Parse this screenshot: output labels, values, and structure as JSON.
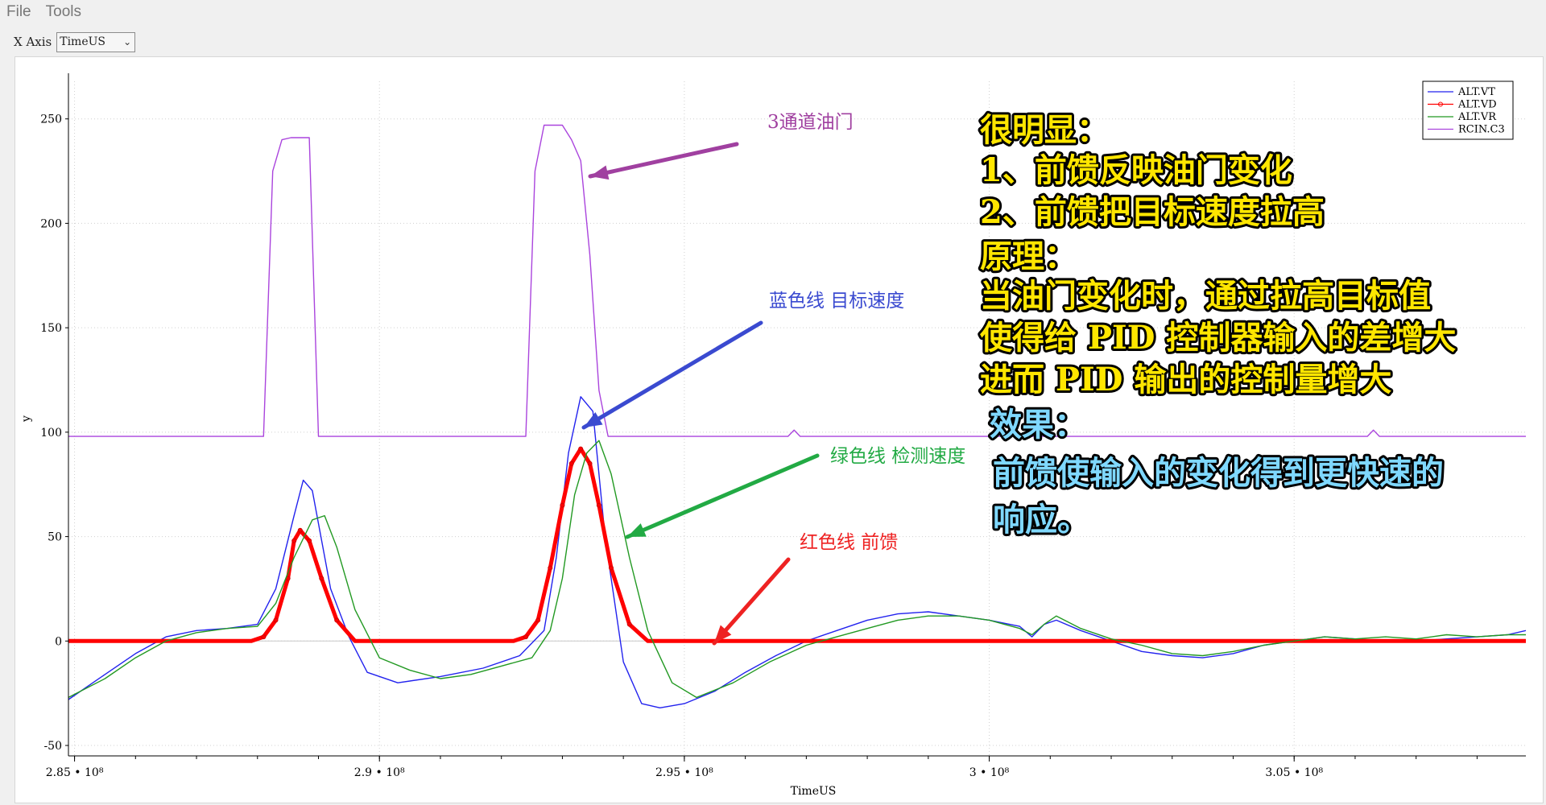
{
  "menu": {
    "items": [
      "File",
      "Tools"
    ]
  },
  "toolbar": {
    "x_axis_label": "X Axis",
    "x_axis_value": "TimeUS"
  },
  "colors": {
    "vt": "#2222ee",
    "vd": "#ff0000",
    "vr": "#229922",
    "rcin": "#aa44dd",
    "note_yellow": "#ffe600",
    "note_cyan": "#7fd8ff",
    "label_purple": "#a040a0",
    "label_blue": "#3a4ad0",
    "label_green": "#22aa44",
    "label_red": "#ee2222"
  },
  "annotations": {
    "label_rcin": "3通道油门",
    "label_vt": "蓝色线 目标速度",
    "label_vr": "绿色线 检测速度",
    "label_vd": "红色线 前馈",
    "note_yellow": [
      "很明显：",
      "1、前馈反映油门变化",
      "2、前馈把目标速度拉高",
      "原理：",
      "当油门变化时，通过拉高目标值",
      "使得给 PID 控制器输入的差增大",
      "进而 PID 输出的控制量增大"
    ],
    "note_cyan": [
      "效果：",
      "前馈使输入的变化得到更快速的",
      "响应。"
    ]
  },
  "chart_data": {
    "type": "line",
    "xlabel": "TimeUS",
    "ylabel": "y",
    "xlim": [
      284900000,
      308800000
    ],
    "ylim": [
      -55,
      268
    ],
    "x_ticks": [
      285000000,
      290000000,
      295000000,
      300000000,
      305000000
    ],
    "x_tick_labels": [
      "2.85",
      "2.9",
      "2.95",
      "3",
      "3.05"
    ],
    "x_tick_suffix": "• 10⁸",
    "y_ticks": [
      -50,
      0,
      50,
      100,
      150,
      200,
      250
    ],
    "y_tick_labels": [
      "-50",
      "0",
      "50",
      "100",
      "150",
      "200",
      "250"
    ],
    "grid": true,
    "legend_position": "top-right",
    "series": [
      {
        "name": "ALT.VT",
        "color_key": "vt",
        "x": [
          284900000,
          285500000,
          286000000,
          286500000,
          287000000,
          287500000,
          288000000,
          288300000,
          288600000,
          288750000,
          288900000,
          289200000,
          289500000,
          289800000,
          290300000,
          291000000,
          291700000,
          292300000,
          292700000,
          292900000,
          293100000,
          293300000,
          293500000,
          293700000,
          294000000,
          294300000,
          294600000,
          295000000,
          295500000,
          296000000,
          296500000,
          297000000,
          297500000,
          298000000,
          298500000,
          299000000,
          299500000,
          300000000,
          300500000,
          300700000,
          300900000,
          301100000,
          301500000,
          302000000,
          302500000,
          303000000,
          303500000,
          304000000,
          304500000,
          305000000,
          305500000,
          306000000,
          306500000,
          307000000,
          307500000,
          308000000,
          308500000,
          308800000
        ],
        "y": [
          -28,
          -16,
          -6,
          2,
          5,
          6,
          8,
          25,
          60,
          77,
          72,
          25,
          2,
          -15,
          -20,
          -17,
          -13,
          -7,
          5,
          40,
          90,
          117,
          110,
          50,
          -10,
          -30,
          -32,
          -30,
          -24,
          -15,
          -7,
          0,
          5,
          10,
          13,
          14,
          12,
          10,
          7,
          2,
          8,
          10,
          5,
          0,
          -5,
          -7,
          -8,
          -6,
          -2,
          0,
          2,
          1,
          0,
          0,
          1,
          2,
          3,
          5
        ]
      },
      {
        "name": "ALT.VD",
        "color_key": "vd",
        "x": [
          284900000,
          287900000,
          288100000,
          288300000,
          288500000,
          288600000,
          288700000,
          288850000,
          289050000,
          289300000,
          289600000,
          292200000,
          292400000,
          292600000,
          292800000,
          293000000,
          293150000,
          293300000,
          293450000,
          293600000,
          293800000,
          294100000,
          294400000,
          308800000
        ],
        "y": [
          0,
          0,
          2,
          10,
          30,
          48,
          53,
          48,
          30,
          10,
          0,
          0,
          2,
          10,
          35,
          65,
          85,
          92,
          85,
          65,
          35,
          8,
          0,
          0
        ]
      },
      {
        "name": "ALT.VR",
        "color_key": "vr",
        "x": [
          284900000,
          285500000,
          286000000,
          286500000,
          287000000,
          287500000,
          288000000,
          288300000,
          288600000,
          288900000,
          289100000,
          289300000,
          289600000,
          290000000,
          290500000,
          291000000,
          291500000,
          292000000,
          292500000,
          292800000,
          293000000,
          293200000,
          293400000,
          293600000,
          293800000,
          294100000,
          294400000,
          294800000,
          295200000,
          295800000,
          296400000,
          297000000,
          297500000,
          298000000,
          298500000,
          299000000,
          299500000,
          300000000,
          300500000,
          300700000,
          300900000,
          301100000,
          301500000,
          302000000,
          302500000,
          303000000,
          303500000,
          304000000,
          304500000,
          305000000,
          305500000,
          306000000,
          306500000,
          307000000,
          307500000,
          308000000,
          308500000,
          308800000
        ],
        "y": [
          -27,
          -18,
          -8,
          0,
          4,
          6,
          7,
          18,
          40,
          58,
          60,
          45,
          15,
          -8,
          -14,
          -18,
          -16,
          -12,
          -8,
          5,
          30,
          70,
          90,
          96,
          80,
          40,
          5,
          -20,
          -27,
          -20,
          -10,
          -2,
          2,
          6,
          10,
          12,
          12,
          10,
          6,
          3,
          8,
          12,
          6,
          1,
          -2,
          -6,
          -7,
          -5,
          -2,
          0,
          2,
          1,
          2,
          1,
          3,
          2,
          3,
          3
        ]
      },
      {
        "name": "RCIN.C3",
        "color_key": "rcin",
        "x": [
          284900000,
          288100000,
          288250000,
          288400000,
          288550000,
          288700000,
          288850000,
          289000000,
          292400000,
          292550000,
          292700000,
          292850000,
          293000000,
          293150000,
          293300000,
          293450000,
          293600000,
          293750000,
          296700000,
          296800000,
          296900000,
          306200000,
          306300000,
          306400000,
          308800000
        ],
        "y": [
          98,
          98,
          225,
          240,
          241,
          241,
          241,
          98,
          98,
          225,
          247,
          247,
          247,
          240,
          230,
          185,
          120,
          98,
          98,
          101,
          98,
          98,
          101,
          98,
          98
        ]
      }
    ]
  }
}
